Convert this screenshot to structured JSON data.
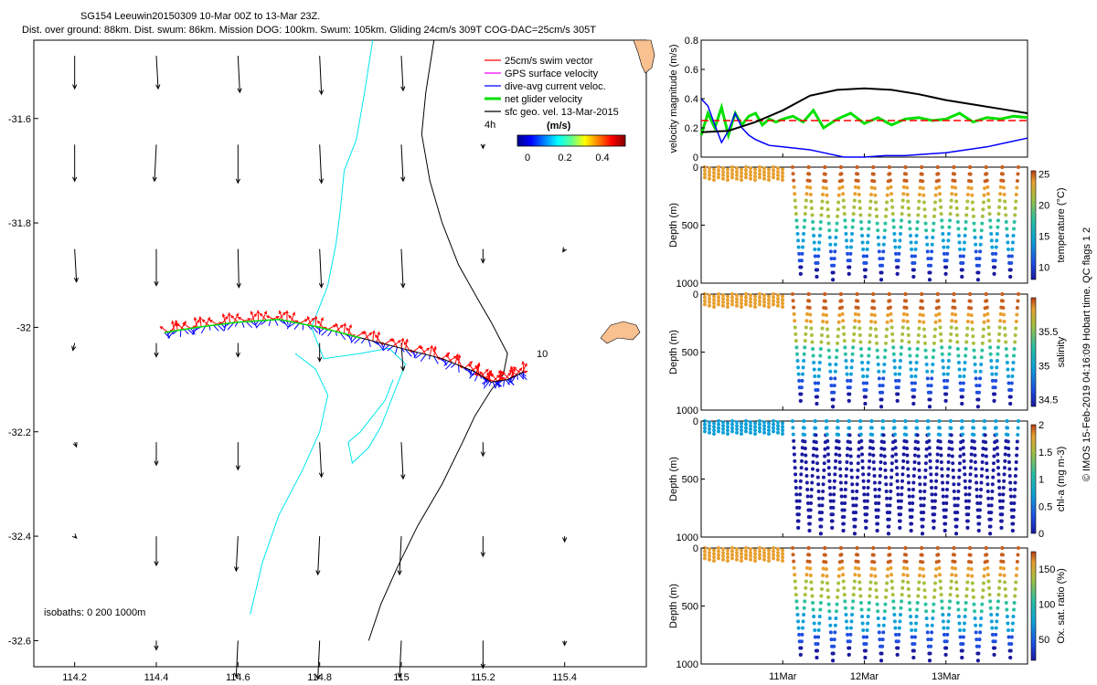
{
  "header": {
    "title_line1": "SG154 Leeuwin20150309 10-Mar 00Z to 13-Mar 23Z.",
    "title_line2": "Dist. over ground: 88km. Dist. swum: 86km. Mission DOG: 100km. Swum: 105km. Gliding 24cm/s 309T COG-DAC=25cm/s 305T"
  },
  "colors": {
    "coast": "#00e5ee",
    "land": "#f9c090",
    "swim": "#ff0000",
    "gps": "#ff00ff",
    "dac": "#0000ff",
    "net": "#00e000",
    "geo": "#000000"
  },
  "chart_data": [
    {
      "type": "map",
      "xlim": [
        114.1,
        115.6
      ],
      "ylim": [
        -32.65,
        -31.45
      ],
      "xticks": [
        "114.2",
        "114.4",
        "114.6",
        "114.8",
        "115",
        "115.2",
        "115.4"
      ],
      "yticks": [
        "-31.6",
        "-31.8",
        "-32",
        "-32.2",
        "-32.4",
        "-32.6"
      ],
      "legend": {
        "items": [
          "25cm/s swim vector",
          "GPS surface velocity",
          "dive-avg current veloc.",
          "net glider velocity",
          "sfc geo. vel. 13-Mar-2015"
        ],
        "colorbar_title": "(m/s)",
        "colorbar_ticks": [
          "0",
          "0.2",
          "0.4"
        ],
        "scale_label": "4h"
      },
      "annotations": {
        "day_label": "10",
        "isobaths": "isobaths: 0   200  1000m"
      },
      "track": [
        [
          114.42,
          -32.01
        ],
        [
          114.5,
          -32.0
        ],
        [
          114.6,
          -31.99
        ],
        [
          114.7,
          -31.985
        ],
        [
          114.8,
          -32.0
        ],
        [
          114.9,
          -32.02
        ],
        [
          115.0,
          -32.04
        ],
        [
          115.1,
          -32.06
        ],
        [
          115.18,
          -32.085
        ],
        [
          115.22,
          -32.105
        ],
        [
          115.26,
          -32.1
        ],
        [
          115.3,
          -32.085
        ]
      ],
      "geo_vectors": [
        [
          114.2,
          -31.48,
          0.0,
          -0.36
        ],
        [
          114.4,
          -31.48,
          0.02,
          -0.36
        ],
        [
          114.6,
          -31.48,
          0.02,
          -0.4
        ],
        [
          114.8,
          -31.48,
          0.02,
          -0.42
        ],
        [
          115.0,
          -31.48,
          0.02,
          -0.38
        ],
        [
          114.2,
          -31.65,
          0.0,
          -0.4
        ],
        [
          114.4,
          -31.65,
          -0.02,
          -0.4
        ],
        [
          114.6,
          -31.65,
          0.0,
          -0.42
        ],
        [
          114.8,
          -31.65,
          0.02,
          -0.42
        ],
        [
          115.0,
          -31.65,
          0.02,
          -0.4
        ],
        [
          115.2,
          -31.65,
          0.0,
          -0.04
        ],
        [
          114.2,
          -31.85,
          0.02,
          -0.36
        ],
        [
          114.4,
          -31.85,
          0.0,
          -0.4
        ],
        [
          114.6,
          -31.85,
          0.01,
          -0.42
        ],
        [
          114.8,
          -31.85,
          0.02,
          -0.42
        ],
        [
          115.0,
          -31.85,
          0.02,
          -0.42
        ],
        [
          115.2,
          -31.85,
          0.0,
          -0.15
        ],
        [
          115.4,
          -31.85,
          -0.02,
          -0.03
        ],
        [
          114.2,
          -32.03,
          -0.02,
          -0.08
        ],
        [
          114.4,
          -32.03,
          0.0,
          -0.15
        ],
        [
          114.6,
          -32.03,
          0.0,
          -0.15
        ],
        [
          114.8,
          -32.03,
          0.0,
          -0.2
        ],
        [
          115.0,
          -32.03,
          0.02,
          -0.3
        ],
        [
          114.2,
          -32.22,
          0.02,
          -0.05
        ],
        [
          114.4,
          -32.22,
          0.0,
          -0.25
        ],
        [
          114.6,
          -32.22,
          0.0,
          -0.3
        ],
        [
          114.8,
          -32.22,
          0.02,
          -0.38
        ],
        [
          115.0,
          -32.22,
          0.02,
          -0.4
        ],
        [
          115.2,
          -32.22,
          0.0,
          -0.15
        ],
        [
          114.2,
          -32.4,
          0.02,
          -0.02
        ],
        [
          114.4,
          -32.4,
          0.0,
          -0.32
        ],
        [
          114.6,
          -32.4,
          -0.02,
          -0.38
        ],
        [
          114.8,
          -32.4,
          -0.02,
          -0.42
        ],
        [
          115.0,
          -32.4,
          -0.02,
          -0.42
        ],
        [
          115.2,
          -32.4,
          0.0,
          -0.22
        ],
        [
          115.4,
          -32.4,
          0.0,
          -0.06
        ],
        [
          114.4,
          -32.6,
          0.0,
          -0.1
        ],
        [
          114.6,
          -32.6,
          -0.02,
          -0.4
        ],
        [
          114.8,
          -32.6,
          -0.02,
          -0.42
        ],
        [
          115.0,
          -32.6,
          -0.02,
          -0.4
        ],
        [
          115.2,
          -32.6,
          0.0,
          -0.3
        ],
        [
          115.4,
          -32.6,
          0.0,
          -0.05
        ]
      ],
      "coastline_cyan": [
        [
          [
            114.93,
            -31.45
          ],
          [
            114.91,
            -31.55
          ],
          [
            114.89,
            -31.64
          ],
          [
            114.86,
            -31.7
          ],
          [
            114.85,
            -31.78
          ],
          [
            114.84,
            -31.84
          ],
          [
            114.82,
            -31.92
          ],
          [
            114.78,
            -32.0
          ],
          [
            114.81,
            -32.06
          ],
          [
            114.9,
            -32.05
          ],
          [
            114.97,
            -32.04
          ],
          [
            115.01,
            -32.07
          ],
          [
            114.98,
            -32.13
          ],
          [
            114.95,
            -32.19
          ],
          [
            114.92,
            -32.23
          ],
          [
            114.88,
            -32.26
          ],
          [
            114.87,
            -32.22
          ],
          [
            114.9,
            -32.2
          ],
          [
            114.93,
            -32.17
          ],
          [
            114.96,
            -32.14
          ],
          [
            114.98,
            -32.1
          ]
        ],
        [
          [
            114.63,
            -32.55
          ],
          [
            114.66,
            -32.45
          ],
          [
            114.7,
            -32.36
          ],
          [
            114.76,
            -32.27
          ],
          [
            114.8,
            -32.2
          ],
          [
            114.82,
            -32.13
          ],
          [
            114.79,
            -32.08
          ],
          [
            114.74,
            -32.05
          ]
        ]
      ],
      "coastline_black": [
        [
          [
            115.08,
            -31.45
          ],
          [
            115.06,
            -31.55
          ],
          [
            115.05,
            -31.63
          ],
          [
            115.07,
            -31.72
          ],
          [
            115.1,
            -31.8
          ],
          [
            115.14,
            -31.88
          ],
          [
            115.19,
            -31.95
          ],
          [
            115.22,
            -31.99
          ],
          [
            115.24,
            -32.02
          ],
          [
            115.26,
            -32.05
          ],
          [
            115.25,
            -32.09
          ],
          [
            115.22,
            -32.12
          ],
          [
            115.18,
            -32.17
          ],
          [
            115.15,
            -32.22
          ],
          [
            115.1,
            -32.3
          ],
          [
            115.04,
            -32.38
          ],
          [
            114.99,
            -32.46
          ],
          [
            114.95,
            -32.53
          ],
          [
            114.92,
            -32.6
          ]
        ]
      ]
    },
    {
      "type": "line",
      "ylabel": "velocity magnitude (m/s)",
      "ylim": [
        0,
        0.8
      ],
      "yticks": [
        "0",
        "0.2",
        "0.4",
        "0.6",
        "0.8"
      ],
      "series": [
        {
          "name": "net glider velocity",
          "x": [
            0,
            2,
            4,
            6,
            8,
            10,
            12,
            14,
            16,
            18,
            20,
            22,
            24,
            27,
            30,
            33,
            36,
            40,
            44,
            48,
            52,
            56,
            60,
            64,
            68,
            72,
            76,
            80,
            84,
            88,
            92,
            96
          ],
          "values": [
            0.15,
            0.3,
            0.2,
            0.34,
            0.15,
            0.3,
            0.22,
            0.28,
            0.3,
            0.22,
            0.26,
            0.24,
            0.26,
            0.28,
            0.24,
            0.32,
            0.2,
            0.26,
            0.3,
            0.23,
            0.27,
            0.22,
            0.26,
            0.27,
            0.25,
            0.26,
            0.3,
            0.24,
            0.27,
            0.26,
            0.28,
            0.27
          ]
        },
        {
          "name": "25cm/s swim vector",
          "x": [
            0,
            96
          ],
          "values": [
            0.25,
            0.25
          ]
        },
        {
          "name": "dive-avg current veloc.",
          "x": [
            0,
            2,
            4,
            6,
            8,
            10,
            12,
            14,
            16,
            18,
            20,
            24,
            28,
            32,
            36,
            42,
            48,
            54,
            60,
            66,
            72,
            78,
            84,
            90,
            96
          ],
          "values": [
            0.4,
            0.35,
            0.22,
            0.1,
            0.18,
            0.3,
            0.2,
            0.15,
            0.12,
            0.1,
            0.08,
            0.07,
            0.06,
            0.05,
            0.03,
            0.0,
            0.0,
            0.01,
            0.01,
            0.02,
            0.03,
            0.05,
            0.07,
            0.1,
            0.13
          ]
        },
        {
          "name": "sfc geo. vel.",
          "x": [
            0,
            8,
            16,
            24,
            32,
            40,
            48,
            56,
            64,
            72,
            80,
            88,
            96
          ],
          "values": [
            0.17,
            0.18,
            0.24,
            0.32,
            0.42,
            0.46,
            0.47,
            0.46,
            0.43,
            0.39,
            0.36,
            0.33,
            0.3
          ]
        }
      ]
    },
    {
      "type": "scatter",
      "ylabel": "Depth (m)",
      "ylim": [
        1000,
        0
      ],
      "yticks": [
        "0",
        "500",
        "1000"
      ],
      "colorbar_label": "temperature (°C)",
      "colorbar_ticks": [
        "10",
        "15",
        "20",
        "25"
      ],
      "clim": [
        8,
        25.5
      ]
    },
    {
      "type": "scatter",
      "ylabel": "Depth (m)",
      "ylim": [
        1000,
        0
      ],
      "yticks": [
        "0",
        "500",
        "1000"
      ],
      "colorbar_label": "salinity",
      "colorbar_ticks": [
        "34.5",
        "35",
        "35.5"
      ],
      "clim": [
        34.4,
        36.0
      ]
    },
    {
      "type": "scatter",
      "ylabel": "Depth (m)",
      "ylim": [
        1000,
        0
      ],
      "yticks": [
        "0",
        "500",
        "1000"
      ],
      "colorbar_label": "chl-a (mg m-3)",
      "colorbar_ticks": [
        "0",
        "0.5",
        "1",
        "1.5",
        "2"
      ],
      "clim": [
        0,
        2
      ]
    },
    {
      "type": "scatter",
      "ylabel": "Depth (m)",
      "ylim": [
        1000,
        0
      ],
      "yticks": [
        "0",
        "500",
        "1000"
      ],
      "colorbar_label": "Ox. sat. ratio (%)",
      "colorbar_ticks": [
        "50",
        "100",
        "150"
      ],
      "clim": [
        20,
        175
      ],
      "xticks": [
        "11Mar",
        "12Mar",
        "13Mar"
      ]
    }
  ],
  "footer": {
    "credit": "© IMOS 15-Feb-2019 04:16:09 Hobart time. QC flags 1  2"
  }
}
